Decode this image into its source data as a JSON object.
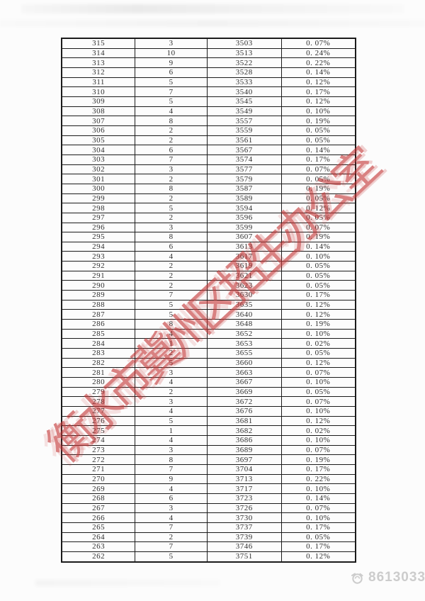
{
  "page": {
    "background_color": "#fcfcfc"
  },
  "table": {
    "description_columns": [
      "score",
      "count",
      "cumulative_count",
      "percentage"
    ],
    "border_color": "#1b1b1b",
    "text_color": "#303030",
    "rows": [
      [
        "315",
        "3",
        "3503",
        "0. 07%"
      ],
      [
        "314",
        "10",
        "3513",
        "0. 24%"
      ],
      [
        "313",
        "9",
        "3522",
        "0. 22%"
      ],
      [
        "312",
        "6",
        "3528",
        "0. 14%"
      ],
      [
        "311",
        "5",
        "3533",
        "0. 12%"
      ],
      [
        "310",
        "7",
        "3540",
        "0. 17%"
      ],
      [
        "309",
        "5",
        "3545",
        "0. 12%"
      ],
      [
        "308",
        "4",
        "3549",
        "0. 10%"
      ],
      [
        "307",
        "8",
        "3557",
        "0. 19%"
      ],
      [
        "306",
        "2",
        "3559",
        "0. 05%"
      ],
      [
        "305",
        "2",
        "3561",
        "0. 05%"
      ],
      [
        "304",
        "6",
        "3567",
        "0. 14%"
      ],
      [
        "303",
        "7",
        "3574",
        "0. 17%"
      ],
      [
        "302",
        "3",
        "3577",
        "0. 07%"
      ],
      [
        "301",
        "2",
        "3579",
        "0. 05%"
      ],
      [
        "300",
        "8",
        "3587",
        "0. 19%"
      ],
      [
        "299",
        "2",
        "3589",
        "0. 05%"
      ],
      [
        "298",
        "5",
        "3594",
        "0. 12%"
      ],
      [
        "297",
        "2",
        "3596",
        "0. 05%"
      ],
      [
        "296",
        "3",
        "3599",
        "0. 07%"
      ],
      [
        "295",
        "8",
        "3607",
        "0. 19%"
      ],
      [
        "294",
        "6",
        "3613",
        "0. 14%"
      ],
      [
        "293",
        "4",
        "3617",
        "0. 10%"
      ],
      [
        "292",
        "2",
        "3619",
        "0. 05%"
      ],
      [
        "291",
        "2",
        "3621",
        "0. 05%"
      ],
      [
        "290",
        "2",
        "3623",
        "0. 05%"
      ],
      [
        "289",
        "7",
        "3630",
        "0. 17%"
      ],
      [
        "288",
        "5",
        "3635",
        "0. 12%"
      ],
      [
        "287",
        "5",
        "3640",
        "0. 12%"
      ],
      [
        "286",
        "8",
        "3648",
        "0. 19%"
      ],
      [
        "285",
        "4",
        "3652",
        "0. 10%"
      ],
      [
        "284",
        "1",
        "3653",
        "0. 02%"
      ],
      [
        "283",
        "2",
        "3655",
        "0. 05%"
      ],
      [
        "282",
        "5",
        "3660",
        "0. 12%"
      ],
      [
        "281",
        "3",
        "3663",
        "0. 07%"
      ],
      [
        "280",
        "4",
        "3667",
        "0. 10%"
      ],
      [
        "279",
        "2",
        "3669",
        "0. 05%"
      ],
      [
        "278",
        "3",
        "3672",
        "0. 07%"
      ],
      [
        "277",
        "4",
        "3676",
        "0. 10%"
      ],
      [
        "276",
        "5",
        "3681",
        "0. 12%"
      ],
      [
        "275",
        "1",
        "3682",
        "0. 02%"
      ],
      [
        "274",
        "4",
        "3686",
        "0. 10%"
      ],
      [
        "273",
        "3",
        "3689",
        "0. 07%"
      ],
      [
        "272",
        "8",
        "3697",
        "0. 19%"
      ],
      [
        "271",
        "7",
        "3704",
        "0. 17%"
      ],
      [
        "270",
        "9",
        "3713",
        "0. 22%"
      ],
      [
        "269",
        "4",
        "3717",
        "0. 10%"
      ],
      [
        "268",
        "6",
        "3723",
        "0. 14%"
      ],
      [
        "267",
        "3",
        "3726",
        "0. 07%"
      ],
      [
        "266",
        "4",
        "3730",
        "0. 10%"
      ],
      [
        "265",
        "7",
        "3737",
        "0. 17%"
      ],
      [
        "264",
        "2",
        "3739",
        "0. 05%"
      ],
      [
        "263",
        "7",
        "3746",
        "0. 17%"
      ],
      [
        "262",
        "5",
        "3751",
        "0. 12%"
      ]
    ]
  },
  "stamp_watermark": {
    "text": "衡水市冀州区招生办公室",
    "color": "#c43636"
  },
  "footer_watermark": {
    "icon": "round-logo-icon",
    "number": "8613033",
    "color": "#c7c7c7"
  }
}
